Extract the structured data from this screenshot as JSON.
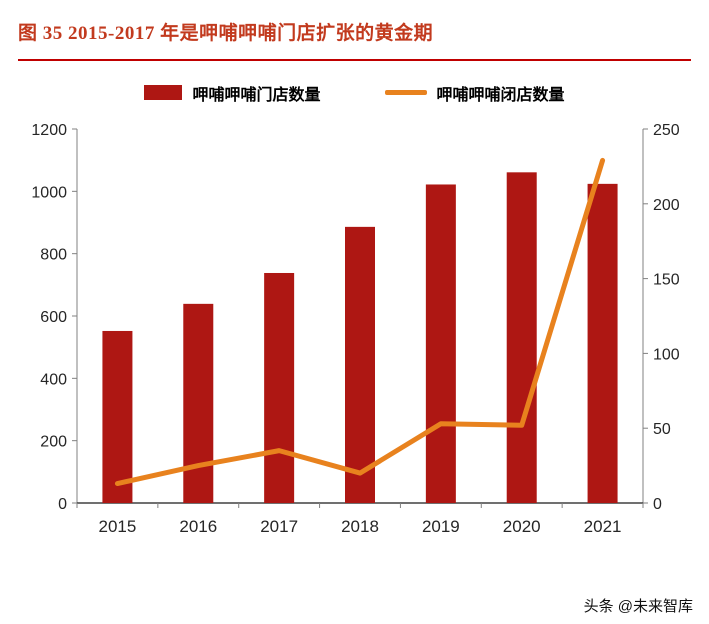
{
  "title": "图 35 2015-2017 年是呷哺呷哺门店扩张的黄金期",
  "footer": "头条 @未来智库",
  "colors": {
    "title": "#C23A1E",
    "rule": "#C00000",
    "bar": "#AE1713",
    "line": "#E8821E",
    "axis_line": "#808080",
    "baseline": "#404040",
    "tick_text": "#262626"
  },
  "chart_data": {
    "type": "bar+line combo",
    "categories": [
      "2015",
      "2016",
      "2017",
      "2018",
      "2019",
      "2020",
      "2021"
    ],
    "series": [
      {
        "name": "呷哺呷哺门店数量",
        "type": "bar",
        "axis": "left",
        "color": "#AE1713",
        "values": [
          552,
          639,
          738,
          886,
          1022,
          1061,
          1024
        ]
      },
      {
        "name": "呷哺呷哺闭店数量",
        "type": "line",
        "axis": "right",
        "color": "#E8821E",
        "values": [
          13,
          25,
          35,
          20,
          53,
          52,
          229
        ]
      }
    ],
    "left_axis": {
      "min": 0,
      "max": 1200,
      "step": 200
    },
    "right_axis": {
      "min": 0,
      "max": 250,
      "step": 50
    },
    "legend_position": "top",
    "grid": false
  }
}
